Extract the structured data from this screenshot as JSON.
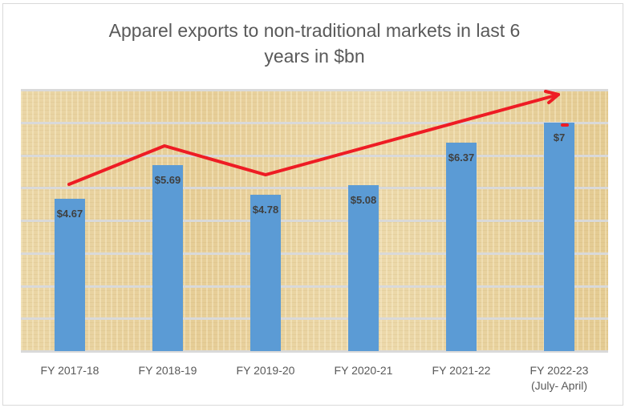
{
  "chart_data": {
    "type": "bar",
    "title": "Apparel exports to non-traditional markets in last 6 years in $bn",
    "title_lines": [
      "Apparel exports to non-traditional markets in last 6",
      "years in $bn"
    ],
    "categories": [
      "FY 2017-18",
      "FY 2018-19",
      "FY 2019-20",
      "FY 2020-21",
      "FY 2021-22",
      "FY 2022-23 (July- April)"
    ],
    "category_lines": [
      [
        "FY 2017-18"
      ],
      [
        "FY 2018-19"
      ],
      [
        "FY 2019-20"
      ],
      [
        "FY 2020-21"
      ],
      [
        "FY 2021-22"
      ],
      [
        "FY 2022-23",
        "(July- April)"
      ]
    ],
    "values": [
      4.67,
      5.69,
      4.78,
      5.08,
      6.37,
      7
    ],
    "data_labels": [
      "$4.67",
      "$5.69",
      "$4.78",
      "$5.08",
      "$6.37",
      "$7"
    ],
    "xlabel": "",
    "ylabel": "",
    "ylim": [
      0,
      8
    ],
    "y_axis_visible": false,
    "grid": true,
    "gridline_step": 1,
    "legend": "none",
    "annotations": [
      "Red hand-drawn trend arrow pointing upward toward FY 2022-23"
    ],
    "colors": {
      "bar": "#5b9bd5",
      "trend_arrow": "#ee1c24",
      "label": "#404040",
      "grid": "#d9d9d9",
      "background_texture": "#e9d3a0"
    }
  }
}
